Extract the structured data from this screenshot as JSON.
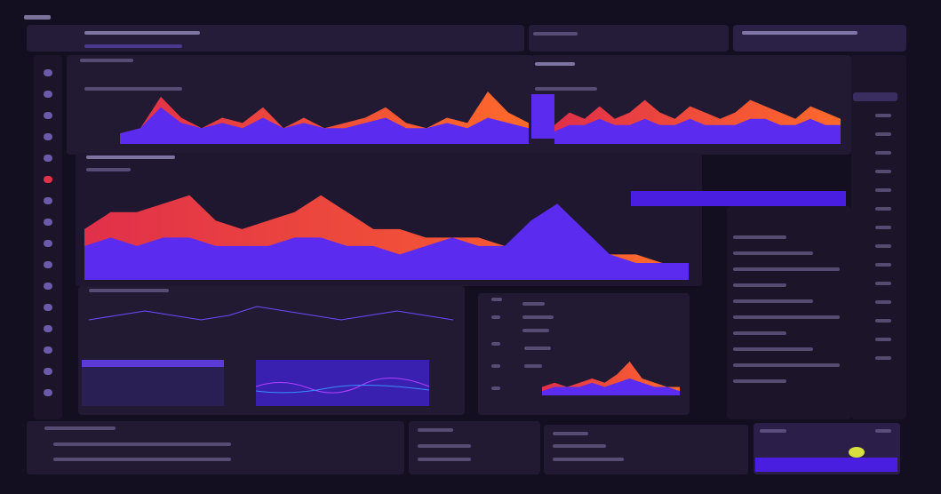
{
  "theme": {
    "background": "#140f20",
    "panel": "#221a33",
    "accent_purple": "#5b2cf0",
    "accent_orange": "#ff6a2a",
    "accent_red": "#e0304a",
    "accent_yellow": "#d8e040"
  },
  "sidebar": {
    "icons": [
      "dashboard-icon",
      "chart-icon",
      "circle-icon",
      "grid-icon",
      "users-icon",
      "alert-icon",
      "layers-icon",
      "settings-icon",
      "list-icon",
      "folder-icon",
      "mail-icon",
      "bell-icon",
      "clock-icon",
      "link-icon",
      "help-icon",
      "logout-icon"
    ]
  },
  "chart_data": [
    {
      "type": "area",
      "values_back": [
        2,
        3,
        9,
        5,
        3,
        5,
        4,
        7,
        3,
        5,
        3,
        4,
        5,
        7,
        4,
        3,
        5,
        4,
        10,
        6,
        4
      ],
      "values_front": [
        2,
        3,
        7,
        4,
        3,
        4,
        3,
        5,
        3,
        4,
        3,
        3,
        4,
        5,
        3,
        3,
        4,
        3,
        5,
        4,
        3
      ]
    },
    {
      "type": "area",
      "values_back": [
        3,
        5,
        4,
        6,
        4,
        5,
        7,
        5,
        4,
        6,
        5,
        4,
        5,
        7,
        6,
        5,
        4,
        6,
        5,
        4
      ],
      "values_front": [
        2,
        3,
        3,
        4,
        3,
        3,
        4,
        3,
        3,
        4,
        3,
        3,
        3,
        4,
        4,
        3,
        3,
        4,
        3,
        3
      ]
    },
    {
      "type": "area",
      "values_back": [
        6,
        8,
        8,
        9,
        10,
        7,
        6,
        7,
        8,
        10,
        8,
        6,
        6,
        5,
        5,
        5,
        4,
        4,
        5,
        4,
        3,
        3,
        2,
        2
      ],
      "values_front": [
        4,
        5,
        4,
        5,
        5,
        4,
        4,
        4,
        5,
        5,
        4,
        4,
        3,
        4,
        5,
        4,
        4,
        7,
        9,
        6,
        3,
        2,
        2,
        2
      ]
    },
    {
      "type": "line",
      "values": [
        3,
        4,
        5,
        4,
        3,
        4,
        6,
        5,
        4,
        3,
        4,
        5,
        4,
        3
      ]
    },
    {
      "type": "area",
      "values_back": [
        2,
        3,
        2,
        3,
        4,
        3,
        5,
        8,
        4,
        3,
        2,
        2
      ],
      "values_front": [
        1,
        2,
        2,
        2,
        3,
        2,
        3,
        4,
        3,
        2,
        2,
        1
      ]
    }
  ]
}
